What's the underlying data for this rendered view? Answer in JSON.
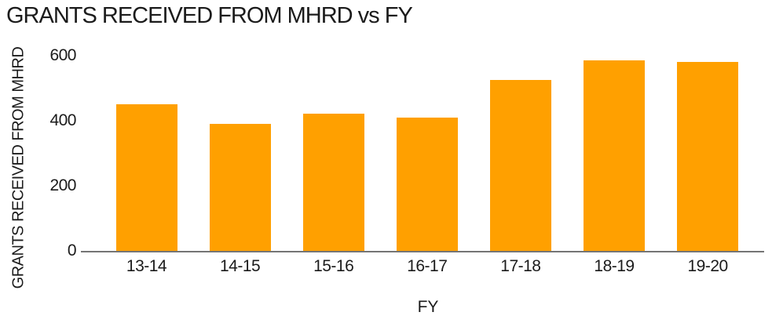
{
  "chart_data": {
    "type": "bar",
    "title": "GRANTS RECEIVED FROM MHRD vs FY",
    "xlabel": "FY",
    "ylabel": "GRANTS RECEIVED FROM MHRD",
    "categories": [
      "13-14",
      "14-15",
      "15-16",
      "16-17",
      "17-18",
      "18-19",
      "19-20"
    ],
    "values": [
      450,
      390,
      420,
      410,
      525,
      585,
      580
    ],
    "ylim": [
      0,
      600
    ],
    "yticks": [
      0,
      200,
      400,
      600
    ],
    "grid": false,
    "legend_position": "none",
    "bar_color": "#FFA000",
    "axis_line_color": "#757575",
    "text_color": "#1b1b1b",
    "background_color": "#FFFFFF"
  }
}
